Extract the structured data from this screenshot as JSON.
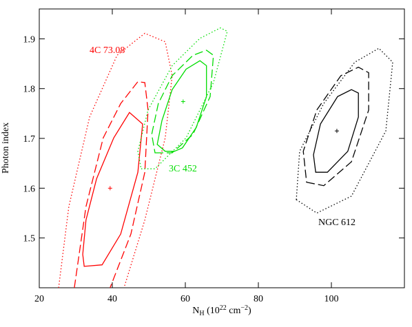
{
  "chart_data": {
    "type": "contour",
    "x_label_parts": [
      "N",
      "H",
      " (10",
      "22",
      " cm",
      "−2",
      ")"
    ],
    "y_label": "Photon index",
    "xlim": [
      20,
      120
    ],
    "ylim": [
      1.4,
      1.96
    ],
    "xticks": [
      20,
      40,
      60,
      80,
      100
    ],
    "yticks": [
      1.5,
      1.6,
      1.7,
      1.8,
      1.9
    ],
    "sources": [
      {
        "name": "4C 73.08",
        "color": "#ff0000",
        "best_fit": {
          "x": 39.4,
          "y": 1.6
        },
        "contours": [
          {
            "style": "solid",
            "closed": true,
            "x": [
              32.3,
              37.2,
              42.3,
              47.0,
              48.3,
              44.7,
              40.4,
              35.7,
              32.8,
              31.9
            ],
            "y": [
              1.443,
              1.446,
              1.508,
              1.632,
              1.729,
              1.752,
              1.701,
              1.619,
              1.536,
              1.467
            ]
          },
          {
            "style": "dashed",
            "closed": false,
            "x": [
              29.6,
              32.8,
              37.5,
              42.3,
              47.0,
              48.9,
              49.8,
              48.9,
              45.1,
              39.4
            ],
            "y": [
              1.4,
              1.563,
              1.701,
              1.77,
              1.814,
              1.812,
              1.757,
              1.632,
              1.508,
              1.4
            ]
          },
          {
            "style": "dotted",
            "closed": false,
            "x": [
              25.3,
              28.1,
              33.8,
              41.3,
              48.9,
              54.5,
              56.4,
              54.5,
              48.9,
              43.2
            ],
            "y": [
              1.4,
              1.563,
              1.743,
              1.867,
              1.911,
              1.894,
              1.826,
              1.701,
              1.536,
              1.4
            ]
          }
        ]
      },
      {
        "name": "3C 452",
        "color": "#00dd00",
        "best_fit": {
          "x": 59.4,
          "y": 1.774
        },
        "contours": [
          {
            "style": "solid",
            "closed": true,
            "x": [
              57.0,
              59.2,
              63.0,
              65.8,
              65.8,
              64.0,
              60.2,
              56.4,
              53.6,
              52.3,
              54.5
            ],
            "y": [
              1.674,
              1.681,
              1.722,
              1.784,
              1.846,
              1.856,
              1.839,
              1.798,
              1.736,
              1.688,
              1.674
            ]
          },
          {
            "style": "dashed",
            "closed": true,
            "x": [
              51.7,
              56.4,
              62.1,
              66.8,
              67.7,
              65.8,
              62.1,
              56.4,
              52.6,
              50.8
            ],
            "y": [
              1.671,
              1.671,
              1.708,
              1.784,
              1.867,
              1.877,
              1.867,
              1.826,
              1.77,
              1.708
            ]
          },
          {
            "style": "dotted",
            "closed": true,
            "x": [
              47.9,
              51.7,
              60.2,
              67.7,
              71.5,
              69.6,
              64.0,
              56.4,
              49.8,
              47.0
            ],
            "y": [
              1.639,
              1.639,
              1.701,
              1.812,
              1.915,
              1.922,
              1.901,
              1.846,
              1.757,
              1.674
            ]
          }
        ]
      },
      {
        "name": "NGC 612",
        "color": "#000000",
        "best_fit": {
          "x": 101.5,
          "y": 1.715
        },
        "contours": [
          {
            "style": "solid",
            "closed": true,
            "x": [
              95.7,
              98.9,
              104.5,
              107.4,
              107.4,
              105.5,
              101.7,
              97.0,
              95.1
            ],
            "y": [
              1.632,
              1.632,
              1.674,
              1.743,
              1.791,
              1.798,
              1.784,
              1.729,
              1.667
            ]
          },
          {
            "style": "dashed",
            "closed": true,
            "x": [
              93.2,
              97.9,
              105.5,
              110.2,
              110.2,
              107.4,
              102.6,
              96.0,
              92.3
            ],
            "y": [
              1.612,
              1.605,
              1.653,
              1.757,
              1.832,
              1.843,
              1.826,
              1.757,
              1.674
            ]
          },
          {
            "style": "dotted",
            "closed": true,
            "x": [
              90.4,
              96.0,
              105.5,
              114.9,
              116.8,
              113.0,
              106.4,
              97.9,
              91.3
            ],
            "y": [
              1.577,
              1.55,
              1.584,
              1.715,
              1.853,
              1.881,
              1.853,
              1.77,
              1.674
            ]
          }
        ]
      }
    ]
  }
}
